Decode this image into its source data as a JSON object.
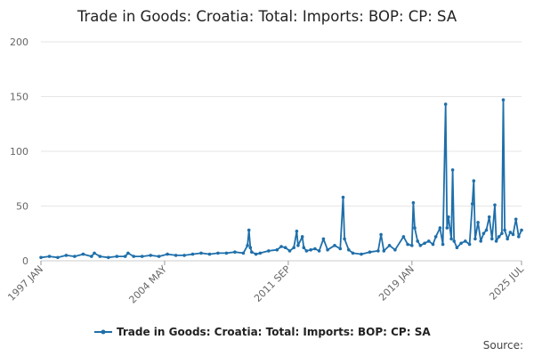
{
  "chart_data": {
    "type": "line",
    "title": "Trade in Goods: Croatia: Total: Imports: BOP: CP: SA",
    "xlabel": "",
    "ylabel": "",
    "ylim": [
      0,
      200
    ],
    "yticks": [
      0,
      50,
      100,
      150,
      200
    ],
    "xticks": [
      "1997 JAN",
      "2004 MAY",
      "2011 SEP",
      "2019 JAN",
      "2025 JUL"
    ],
    "grid": true,
    "legend_position": "bottom",
    "series": [
      {
        "name": "Trade in Goods: Croatia: Total: Imports: BOP: CP: SA",
        "color": "#1f6faa",
        "points": [
          [
            "1997-01",
            3
          ],
          [
            "1997-07",
            4
          ],
          [
            "1998-01",
            3
          ],
          [
            "1998-07",
            5
          ],
          [
            "1999-01",
            4
          ],
          [
            "1999-07",
            6
          ],
          [
            "2000-01",
            4
          ],
          [
            "2000-03",
            7
          ],
          [
            "2000-07",
            4
          ],
          [
            "2001-01",
            3
          ],
          [
            "2001-07",
            4
          ],
          [
            "2002-01",
            4
          ],
          [
            "2002-03",
            7
          ],
          [
            "2002-07",
            4
          ],
          [
            "2003-01",
            4
          ],
          [
            "2003-07",
            5
          ],
          [
            "2004-01",
            4
          ],
          [
            "2004-07",
            6
          ],
          [
            "2005-01",
            5
          ],
          [
            "2005-07",
            5
          ],
          [
            "2006-01",
            6
          ],
          [
            "2006-07",
            7
          ],
          [
            "2007-01",
            6
          ],
          [
            "2007-07",
            7
          ],
          [
            "2008-01",
            7
          ],
          [
            "2008-07",
            8
          ],
          [
            "2009-01",
            7
          ],
          [
            "2009-04",
            14
          ],
          [
            "2009-05",
            28
          ],
          [
            "2009-06",
            12
          ],
          [
            "2009-07",
            8
          ],
          [
            "2009-10",
            6
          ],
          [
            "2010-01",
            7
          ],
          [
            "2010-07",
            9
          ],
          [
            "2011-01",
            10
          ],
          [
            "2011-04",
            13
          ],
          [
            "2011-07",
            12
          ],
          [
            "2011-10",
            9
          ],
          [
            "2012-01",
            12
          ],
          [
            "2012-03",
            27
          ],
          [
            "2012-04",
            14
          ],
          [
            "2012-07",
            22
          ],
          [
            "2012-08",
            12
          ],
          [
            "2012-10",
            9
          ],
          [
            "2013-01",
            10
          ],
          [
            "2013-04",
            11
          ],
          [
            "2013-07",
            9
          ],
          [
            "2013-10",
            20
          ],
          [
            "2014-01",
            10
          ],
          [
            "2014-06",
            14
          ],
          [
            "2014-10",
            11
          ],
          [
            "2014-12",
            58
          ],
          [
            "2015-01",
            20
          ],
          [
            "2015-04",
            10
          ],
          [
            "2015-07",
            7
          ],
          [
            "2016-01",
            6
          ],
          [
            "2016-07",
            8
          ],
          [
            "2017-01",
            9
          ],
          [
            "2017-03",
            24
          ],
          [
            "2017-05",
            9
          ],
          [
            "2017-09",
            14
          ],
          [
            "2018-01",
            10
          ],
          [
            "2018-07",
            22
          ],
          [
            "2018-10",
            15
          ],
          [
            "2019-01",
            14
          ],
          [
            "2019-02",
            53
          ],
          [
            "2019-03",
            30
          ],
          [
            "2019-05",
            18
          ],
          [
            "2019-07",
            14
          ],
          [
            "2019-10",
            16
          ],
          [
            "2020-01",
            18
          ],
          [
            "2020-04",
            15
          ],
          [
            "2020-06",
            22
          ],
          [
            "2020-09",
            30
          ],
          [
            "2020-11",
            15
          ],
          [
            "2021-01",
            143
          ],
          [
            "2021-02",
            30
          ],
          [
            "2021-03",
            40
          ],
          [
            "2021-05",
            20
          ],
          [
            "2021-06",
            83
          ],
          [
            "2021-07",
            18
          ],
          [
            "2021-09",
            12
          ],
          [
            "2021-12",
            16
          ],
          [
            "2022-03",
            18
          ],
          [
            "2022-06",
            15
          ],
          [
            "2022-08",
            52
          ],
          [
            "2022-09",
            73
          ],
          [
            "2022-10",
            20
          ],
          [
            "2022-12",
            35
          ],
          [
            "2023-02",
            18
          ],
          [
            "2023-04",
            25
          ],
          [
            "2023-06",
            28
          ],
          [
            "2023-08",
            40
          ],
          [
            "2023-10",
            20
          ],
          [
            "2023-12",
            51
          ],
          [
            "2024-01",
            18
          ],
          [
            "2024-03",
            22
          ],
          [
            "2024-05",
            25
          ],
          [
            "2024-06",
            147
          ],
          [
            "2024-07",
            28
          ],
          [
            "2024-09",
            20
          ],
          [
            "2024-11",
            26
          ],
          [
            "2025-01",
            24
          ],
          [
            "2025-03",
            38
          ],
          [
            "2025-05",
            22
          ],
          [
            "2025-07",
            28
          ]
        ]
      }
    ]
  },
  "source_label": "Source:"
}
